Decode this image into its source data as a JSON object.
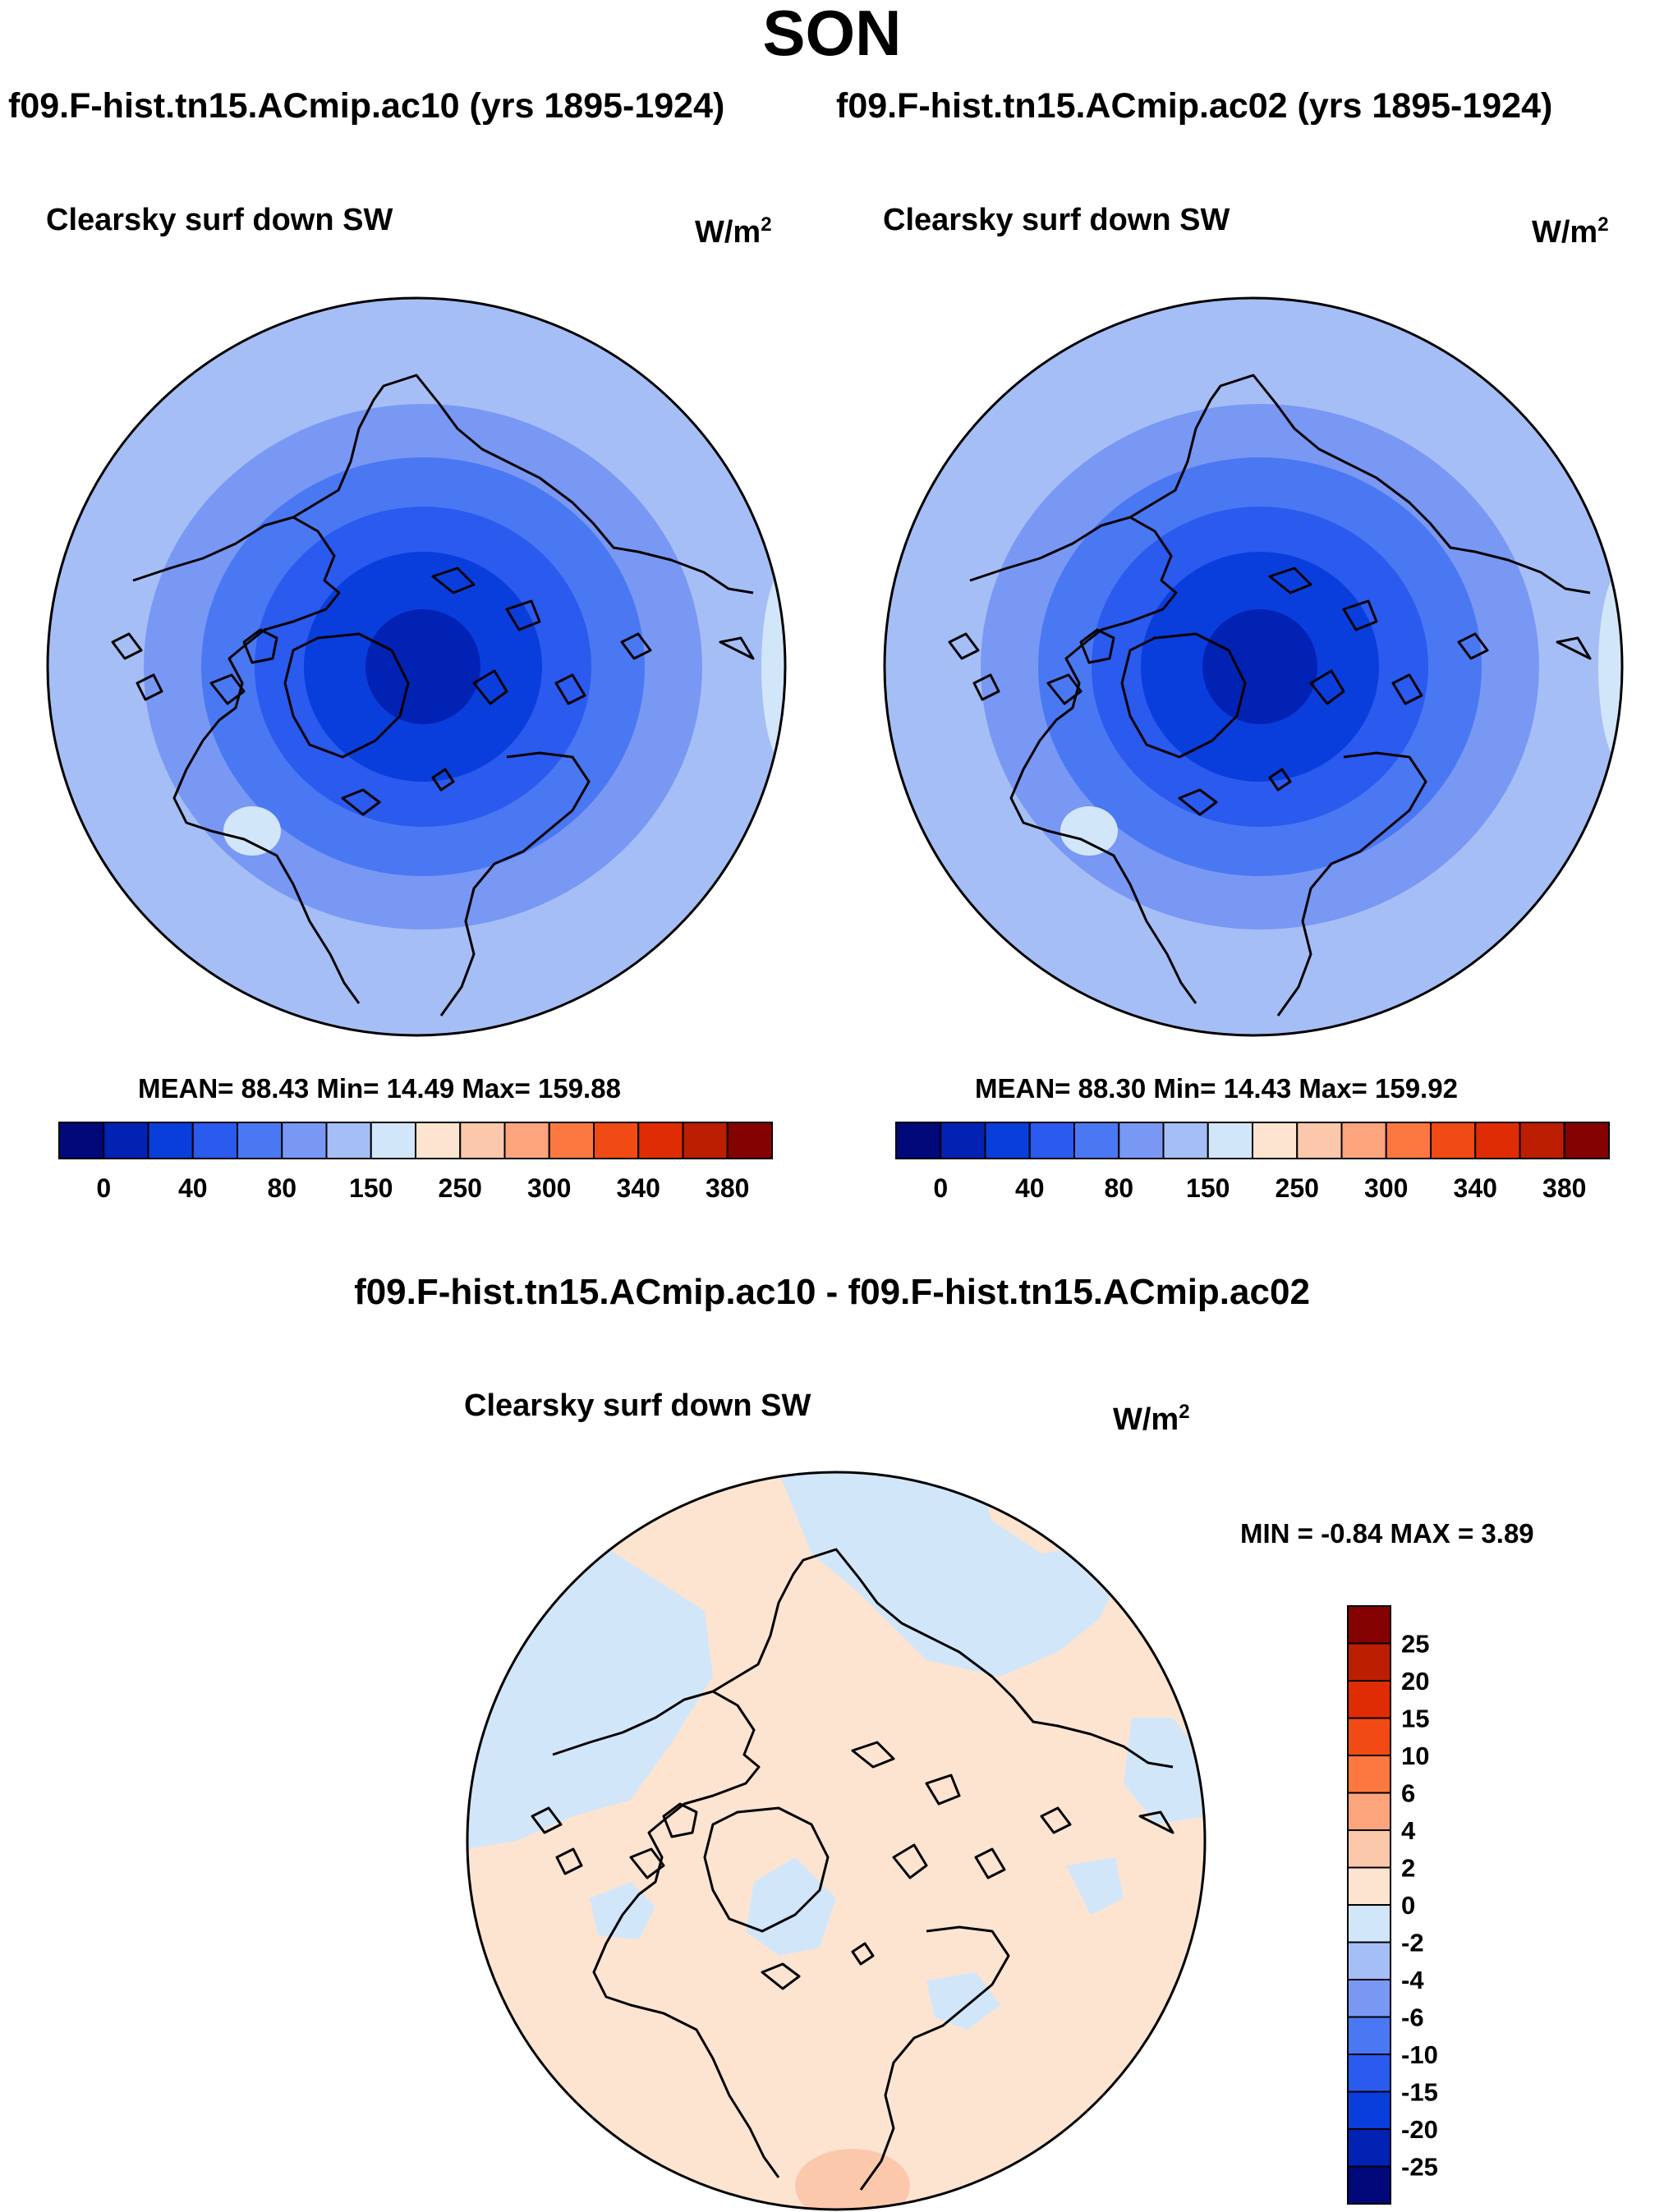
{
  "title": "SON",
  "case_names": {
    "left": "f09.F-hist.tn15.ACmip.ac10 (yrs 1895-1924)",
    "right": "f09.F-hist.tn15.ACmip.ac02 (yrs 1895-1924)"
  },
  "colors": {
    "blues": [
      "#00087a",
      "#0222b4",
      "#0a3edc",
      "#2a5aee",
      "#4a78f2",
      "#7898f4",
      "#a6bef6",
      "#d2e6fa"
    ],
    "reds": [
      "#fde4d0",
      "#fcc8ac",
      "#fca47c",
      "#fc7840",
      "#f24a14",
      "#e02c04",
      "#bc1e02",
      "#840202"
    ],
    "coast": "#000000"
  },
  "chart_data": [
    {
      "type": "heatmap",
      "projection": "north polar stereographic",
      "title": "Clearsky surf down SW",
      "units_base": "W/m",
      "units_exp": "2",
      "stats": "MEAN=  88.43  Min=  14.49  Max= 159.88",
      "mean": 88.43,
      "min": 14.49,
      "max": 159.88,
      "contour_levels": [
        0,
        20,
        40,
        60,
        80,
        100,
        150,
        200,
        250,
        275,
        300,
        320,
        340,
        360,
        380
      ],
      "colorbar_tick_labels": [
        "0",
        "40",
        "80",
        "150",
        "250",
        "300",
        "340",
        "380"
      ]
    },
    {
      "type": "heatmap",
      "projection": "north polar stereographic",
      "title": "Clearsky surf down SW",
      "units_base": "W/m",
      "units_exp": "2",
      "stats": "MEAN=  88.30  Min=  14.43  Max= 159.92",
      "mean": 88.3,
      "min": 14.43,
      "max": 159.92,
      "contour_levels": [
        0,
        20,
        40,
        60,
        80,
        100,
        150,
        200,
        250,
        275,
        300,
        320,
        340,
        360,
        380
      ],
      "colorbar_tick_labels": [
        "0",
        "40",
        "80",
        "150",
        "250",
        "300",
        "340",
        "380"
      ]
    },
    {
      "type": "heatmap",
      "projection": "north polar stereographic",
      "difference_title": "f09.F-hist.tn15.ACmip.ac10 - f09.F-hist.tn15.ACmip.ac02",
      "title": "Clearsky surf down SW",
      "units_base": "W/m",
      "units_exp": "2",
      "minmax_text": "MIN =  -0.84 MAX =   3.89",
      "min": -0.84,
      "max": 3.89,
      "contour_levels": [
        -25,
        -20,
        -15,
        -10,
        -6,
        -4,
        -2,
        0,
        2,
        4,
        6,
        10,
        15,
        20,
        25
      ],
      "colorbar_labels_top_to_bottom": [
        "25",
        "20",
        "15",
        "10",
        "6",
        "4",
        "2",
        "0",
        "-2",
        "-4",
        "-6",
        "-10",
        "-15",
        "-20",
        "-25"
      ]
    }
  ]
}
